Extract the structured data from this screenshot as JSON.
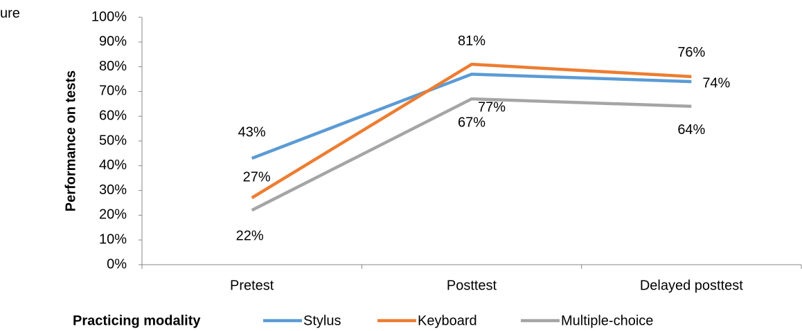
{
  "fragment": "ure",
  "chart_data": {
    "type": "line",
    "y_label": "Performance on tests",
    "legend_title": "Practicing modality",
    "categories": [
      "Pretest",
      "Posttest",
      "Delayed posttest"
    ],
    "series": [
      {
        "name": "Stylus",
        "color": "#5b9bd5",
        "values": [
          43,
          77,
          74
        ],
        "value_labels": [
          "43%",
          "77%",
          "74%"
        ]
      },
      {
        "name": "Keyboard",
        "color": "#ed7d31",
        "values": [
          27,
          81,
          76
        ],
        "value_labels": [
          "27%",
          "81%",
          "76%"
        ]
      },
      {
        "name": "Multiple-choice",
        "color": "#a5a5a5",
        "values": [
          22,
          67,
          64
        ],
        "value_labels": [
          "22%",
          "67%",
          "64%"
        ]
      }
    ],
    "ylim": [
      0,
      100
    ],
    "yticks": [
      {
        "value": 0,
        "label": "0%"
      },
      {
        "value": 10,
        "label": "10%"
      },
      {
        "value": 20,
        "label": "20%"
      },
      {
        "value": 30,
        "label": "30%"
      },
      {
        "value": 40,
        "label": "40%"
      },
      {
        "value": 50,
        "label": "50%"
      },
      {
        "value": 60,
        "label": "60%"
      },
      {
        "value": 70,
        "label": "70%"
      },
      {
        "value": 80,
        "label": "80%"
      },
      {
        "value": 90,
        "label": "90%"
      },
      {
        "value": 100,
        "label": "100%"
      }
    ],
    "grid": false,
    "legend": "bottom"
  }
}
